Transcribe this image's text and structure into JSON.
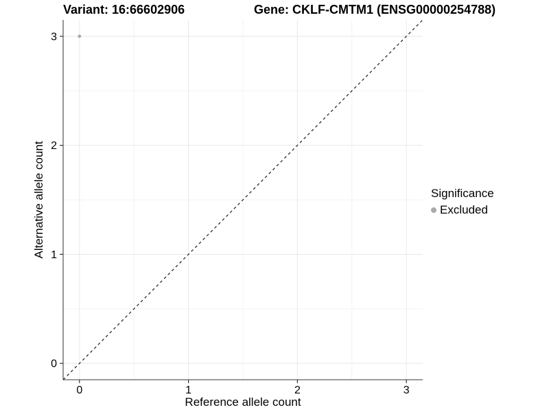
{
  "header": {
    "variant_title": "Variant: 16:66602906",
    "gene_title": "Gene: CKLF-CMTM1 (ENSG00000254788)"
  },
  "legend": {
    "title": "Significance",
    "items": [
      {
        "label": "Excluded",
        "color": "#a9a9a9"
      }
    ]
  },
  "chart_data": {
    "type": "scatter",
    "title": "Variant: 16:66602906 | Gene: CKLF-CMTM1 (ENSG00000254788)",
    "xlabel": "Reference allele count",
    "ylabel": "Alternative allele count",
    "xlim": [
      -0.15,
      3.15
    ],
    "ylim": [
      -0.15,
      3.15
    ],
    "xticks": [
      0,
      1,
      2,
      3
    ],
    "yticks": [
      0,
      1,
      2,
      3
    ],
    "xtick_labels": [
      "0",
      "1",
      "2",
      "3"
    ],
    "ytick_labels": [
      "0",
      "1",
      "2",
      "3"
    ],
    "minor_ticks": [
      0.5,
      1.5,
      2.5
    ],
    "grid": true,
    "legend_position": "right",
    "reference_line": {
      "type": "identity",
      "slope": 1,
      "intercept": 0,
      "style": "dashed",
      "color": "#1a1a1a"
    },
    "series": [
      {
        "name": "Excluded",
        "color": "#a9a9a9",
        "points": [
          {
            "x": 0,
            "y": 3
          }
        ]
      }
    ]
  },
  "colors": {
    "grid_major": "#e8e8e8",
    "grid_minor": "#f3f3f3",
    "axis_line": "#5f5f5f",
    "tick_mark": "#333333",
    "text": "#000000",
    "point": "#a9a9a9",
    "background": "#ffffff"
  }
}
